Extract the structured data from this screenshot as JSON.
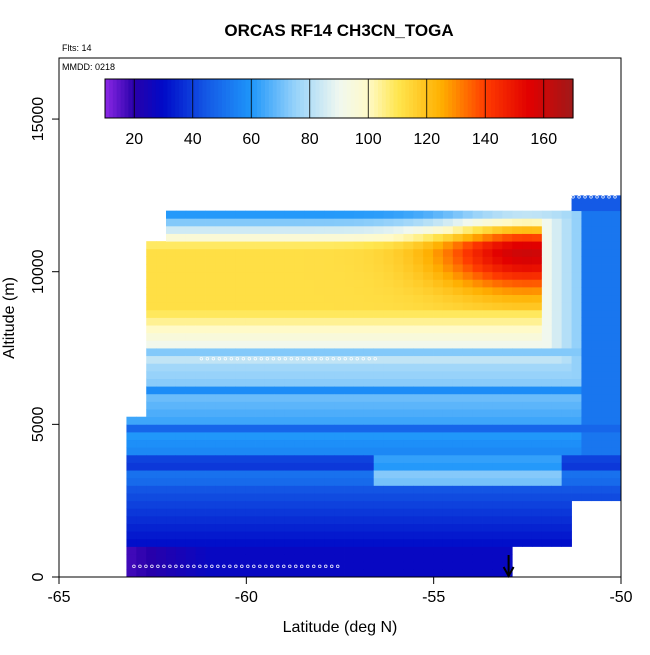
{
  "chart_data": {
    "type": "heatmap",
    "title": "ORCAS RF14 CH3CN_TOGA",
    "subtitle_flights": "Flts: 14",
    "subtitle_date": "MMDD: 0218",
    "xlabel": "Latitude (deg N)",
    "ylabel": "Altitude (m)",
    "xlim": [
      -65,
      -50
    ],
    "ylim": [
      0,
      17000
    ],
    "x_ticks": [
      -65,
      -60,
      -55,
      -50
    ],
    "x_tick_labels": [
      "-65",
      "-60",
      "-55",
      "-50"
    ],
    "y_ticks": [
      0,
      5000,
      10000,
      15000
    ],
    "y_tick_labels": [
      "0",
      "5000",
      "10000",
      "15000"
    ],
    "colorbar": {
      "range": [
        10,
        170
      ],
      "ticks": [
        20,
        40,
        60,
        80,
        100,
        120,
        140,
        160
      ],
      "tick_labels": [
        "20",
        "40",
        "60",
        "80",
        "100",
        "120",
        "140",
        "160"
      ],
      "placement": "top-left inset"
    },
    "grid": false,
    "value_field": {
      "description": "Interpolated CH3CN mixing ratio (pptv) over latitude/altitude",
      "lat_range": [
        -63.2,
        -50
      ],
      "alt_range": [
        0,
        12500
      ],
      "max_value": 160,
      "max_location": {
        "lat": -52.5,
        "alt": 10700
      },
      "min_value": 15,
      "min_location": {
        "lat": -62,
        "alt": 200
      }
    },
    "arrow": {
      "lat": -53,
      "direction": "down"
    }
  }
}
